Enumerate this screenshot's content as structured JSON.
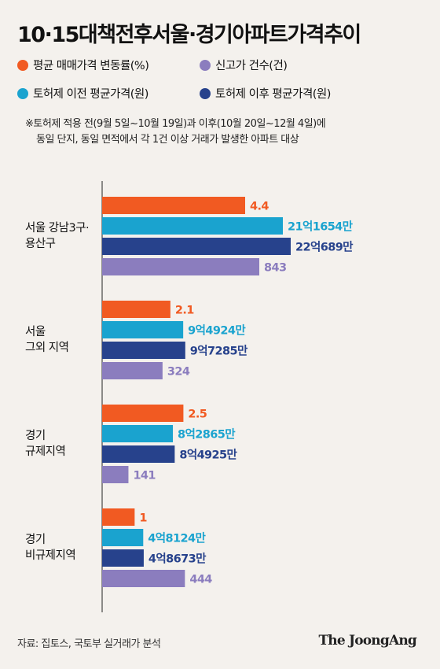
{
  "title": "10·15대책전후서울·경기아파트가격추이",
  "legend": [
    {
      "label": "평균 매매가격 변동률(%)",
      "color": "#f15a22"
    },
    {
      "label": "신고가 건수(건)",
      "color": "#8b7dbe"
    },
    {
      "label": "토허제 이전 평균가격(원)",
      "color": "#1aa3cf"
    },
    {
      "label": "토허제 이후 평균가격(원)",
      "color": "#27428c"
    }
  ],
  "note": {
    "line1": "※토허제 적용 전(9월 5일~10월 19일)과 이후(10월 20일~12월 4일)에",
    "line2": "동일 단지, 동일 면적에서 각 1건 이상 거래가 발생한 아파트 대상"
  },
  "chart_data": {
    "type": "bar",
    "orientation": "horizontal",
    "title": "10·15대책전후서울·경기아파트가격추이",
    "categories": [
      {
        "lines": [
          "서울 강남3구·",
          "용산구"
        ]
      },
      {
        "lines": [
          "서울",
          "그외 지역"
        ]
      },
      {
        "lines": [
          "경기",
          "규제지역"
        ]
      },
      {
        "lines": [
          "경기",
          "비규제지역"
        ]
      }
    ],
    "series": [
      {
        "name": "평균 매매가격 변동률(%)",
        "color": "#f15a22",
        "label_color": "#f15a22",
        "values": [
          4.4,
          2.1,
          2.5,
          1
        ],
        "labels": [
          "4.4",
          "2.1",
          "2.5",
          "1"
        ]
      },
      {
        "name": "토허제 이전 평균가격(원)",
        "color": "#1aa3cf",
        "label_color": "#1aa3cf",
        "values": [
          2116540000,
          949240000,
          828650000,
          481240000
        ],
        "labels": [
          "21억1654만",
          "9억4924만",
          "8억2865만",
          "4억8124만"
        ]
      },
      {
        "name": "토허제 이후 평균가격(원)",
        "color": "#27428c",
        "label_color": "#27428c",
        "values": [
          2206890000,
          972850000,
          849250000,
          486730000
        ],
        "labels": [
          "22억689만",
          "9억7285만",
          "8억4925만",
          "4억8673만"
        ]
      },
      {
        "name": "신고가 건수(건)",
        "color": "#8b7dbe",
        "label_color": "#8b7dbe",
        "values": [
          843,
          324,
          141,
          444
        ],
        "labels": [
          "843",
          "324",
          "141",
          "444"
        ]
      }
    ],
    "legend": "top-left",
    "grid": false
  },
  "source": "자료: 집토스, 국토부 실거래가 분석",
  "brand": "The JoongAng"
}
